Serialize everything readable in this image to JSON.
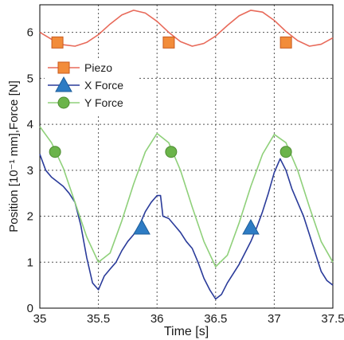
{
  "chart_data": {
    "type": "line",
    "title": "",
    "xlabel": "Time [s]",
    "ylabel": "Position [10⁻¹ mm],Force [N]",
    "xlim": [
      35,
      37.5
    ],
    "ylim": [
      0,
      6.6
    ],
    "grid": true,
    "x_ticks": [
      35,
      35.5,
      36,
      36.5,
      37,
      37.5
    ],
    "x_tick_labels": [
      "35",
      "35.5",
      "36",
      "36.5",
      "37",
      "37.5"
    ],
    "y_ticks": [
      0,
      1,
      2,
      3,
      4,
      5,
      6
    ],
    "y_tick_labels": [
      "0",
      "1",
      "2",
      "3",
      "4",
      "5",
      "6"
    ],
    "legend_position": "upper-left",
    "series": [
      {
        "name": "Piezo",
        "color": "#e86a5a",
        "marker": "square",
        "marker_color": "#f28c3a",
        "x": [
          35.0,
          35.1,
          35.2,
          35.3,
          35.4,
          35.5,
          35.6,
          35.7,
          35.8,
          35.9,
          36.0,
          36.1,
          36.2,
          36.3,
          36.4,
          36.5,
          36.6,
          36.7,
          36.8,
          36.9,
          37.0,
          37.1,
          37.2,
          37.3,
          37.4,
          37.5
        ],
        "values": [
          6.0,
          5.85,
          5.73,
          5.7,
          5.78,
          5.95,
          6.18,
          6.38,
          6.48,
          6.42,
          6.24,
          6.0,
          5.8,
          5.7,
          5.76,
          5.92,
          6.15,
          6.36,
          6.48,
          6.44,
          6.26,
          6.02,
          5.82,
          5.7,
          5.74,
          5.88
        ],
        "marker_x": [
          35.15,
          36.1,
          37.1
        ],
        "marker_values": [
          5.78,
          5.78,
          5.78
        ]
      },
      {
        "name": "X Force",
        "color": "#2a3b9a",
        "marker": "triangle",
        "marker_color": "#2e7cc4",
        "x": [
          35.0,
          35.05,
          35.1,
          35.15,
          35.2,
          35.25,
          35.3,
          35.35,
          35.4,
          35.45,
          35.5,
          35.55,
          35.6,
          35.65,
          35.7,
          35.75,
          35.8,
          35.85,
          35.9,
          35.95,
          36.0,
          36.03,
          36.05,
          36.1,
          36.15,
          36.2,
          36.25,
          36.3,
          36.35,
          36.4,
          36.45,
          36.5,
          36.55,
          36.6,
          36.65,
          36.7,
          36.75,
          36.8,
          36.85,
          36.9,
          36.95,
          37.0,
          37.05,
          37.1,
          37.15,
          37.2,
          37.25,
          37.3,
          37.35,
          37.4,
          37.45,
          37.5
        ],
        "values": [
          3.35,
          3.0,
          2.85,
          2.75,
          2.65,
          2.5,
          2.3,
          1.8,
          1.1,
          0.55,
          0.4,
          0.7,
          0.85,
          1.0,
          1.25,
          1.45,
          1.6,
          1.8,
          2.1,
          2.3,
          2.45,
          2.45,
          2.0,
          1.95,
          1.8,
          1.65,
          1.45,
          1.3,
          1.0,
          0.65,
          0.4,
          0.2,
          0.3,
          0.55,
          0.75,
          0.95,
          1.2,
          1.45,
          1.75,
          2.1,
          2.5,
          2.95,
          3.25,
          3.0,
          2.6,
          2.3,
          2.0,
          1.6,
          1.2,
          0.8,
          0.6,
          0.5
        ],
        "marker_x": [
          35.87,
          36.8
        ],
        "marker_values": [
          1.75,
          1.75
        ]
      },
      {
        "name": "Y Force",
        "color": "#8fd07a",
        "marker": "circle",
        "marker_color": "#6bb44a",
        "x": [
          35.0,
          35.1,
          35.2,
          35.3,
          35.4,
          35.5,
          35.6,
          35.7,
          35.8,
          35.9,
          36.0,
          36.1,
          36.2,
          36.3,
          36.4,
          36.5,
          36.6,
          36.7,
          36.8,
          36.9,
          37.0,
          37.1,
          37.2,
          37.3,
          37.4,
          37.5
        ],
        "values": [
          3.95,
          3.6,
          3.05,
          2.3,
          1.55,
          1.0,
          1.2,
          1.9,
          2.7,
          3.4,
          3.8,
          3.6,
          3.0,
          2.2,
          1.45,
          0.9,
          1.15,
          1.85,
          2.65,
          3.35,
          3.78,
          3.6,
          3.0,
          2.2,
          1.45,
          1.0
        ],
        "marker_x": [
          35.13,
          36.12,
          37.1
        ],
        "marker_values": [
          3.4,
          3.4,
          3.4
        ]
      }
    ]
  }
}
